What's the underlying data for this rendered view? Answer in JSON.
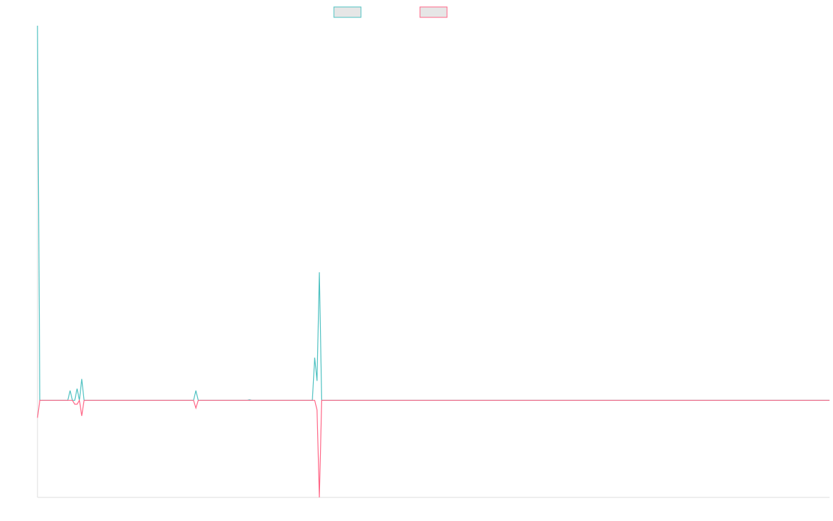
{
  "chart_data": {
    "type": "line",
    "title": "",
    "xlabel": "",
    "ylabel": "",
    "x_count": 341,
    "xlim": [
      0,
      340
    ],
    "ylim": [
      -50,
      193
    ],
    "grid": false,
    "legend_position": "top-center",
    "series": [
      {
        "color": "#4bc0c0",
        "fill": "#e6e6e6",
        "points": [
          [
            0,
            193
          ],
          [
            1,
            0
          ],
          [
            13,
            0
          ],
          [
            14,
            5
          ],
          [
            15,
            0
          ],
          [
            16,
            0
          ],
          [
            17,
            6
          ],
          [
            18,
            0
          ],
          [
            19,
            11
          ],
          [
            20,
            0
          ],
          [
            67,
            0
          ],
          [
            68,
            5
          ],
          [
            69,
            0
          ],
          [
            90,
            0
          ],
          [
            91,
            0.3
          ],
          [
            92,
            0
          ],
          [
            118,
            0
          ],
          [
            119,
            22
          ],
          [
            120,
            10
          ],
          [
            121,
            66
          ],
          [
            122,
            0
          ],
          [
            340,
            0
          ]
        ]
      },
      {
        "color": "#ff6384",
        "fill": "#e6e6e6",
        "points": [
          [
            0,
            -9
          ],
          [
            1,
            0
          ],
          [
            13,
            0
          ],
          [
            14,
            0
          ],
          [
            15,
            0
          ],
          [
            16,
            -2
          ],
          [
            17,
            -2
          ],
          [
            18,
            0
          ],
          [
            19,
            -8
          ],
          [
            20,
            0
          ],
          [
            67,
            0
          ],
          [
            68,
            -4
          ],
          [
            69,
            0
          ],
          [
            119,
            0
          ],
          [
            120,
            -5
          ],
          [
            121,
            -50
          ],
          [
            122,
            0
          ],
          [
            340,
            0
          ]
        ]
      }
    ]
  }
}
